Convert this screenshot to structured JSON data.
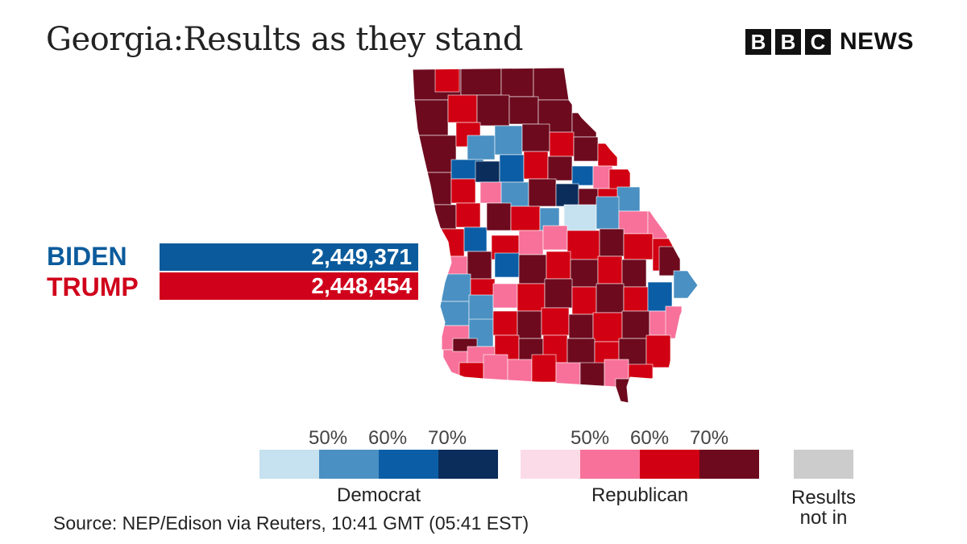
{
  "title": "Georgia:Results as they stand",
  "logo": {
    "blocks": [
      "B",
      "B",
      "C"
    ],
    "news": "NEWS"
  },
  "candidates": [
    {
      "name": "BIDEN",
      "votes": "2,449,371",
      "color": "#0b5b9c"
    },
    {
      "name": "TRUMP",
      "votes": "2,448,454",
      "color": "#d0021b"
    }
  ],
  "legend": {
    "democrat": {
      "label": "Democrat",
      "ticks": [
        "50%",
        "60%",
        "70%"
      ],
      "colors": [
        "#c6e1ef",
        "#4a90c2",
        "#0b5ea6",
        "#0b2d5c"
      ]
    },
    "republican": {
      "label": "Republican",
      "ticks": [
        "50%",
        "60%",
        "70%"
      ],
      "colors": [
        "#fcdbe8",
        "#f7719a",
        "#d10012",
        "#6d0a1e"
      ]
    },
    "no_results": {
      "label_line1": "Results",
      "label_line2": "not in",
      "color": "#cccccc"
    }
  },
  "source": "Source: NEP/Edison via Reuters, 10:41 GMT (05:41 EST)",
  "map_colors": {
    "dem_light": "#c6e1ef",
    "dem_mid": "#4a90c2",
    "dem_strong": "#0b5ea6",
    "dem_dark": "#0b2d5c",
    "rep_light": "#fcdbe8",
    "rep_mid": "#f7719a",
    "rep_strong": "#d10012",
    "rep_dark": "#6d0a1e",
    "border": "#ffffff"
  }
}
